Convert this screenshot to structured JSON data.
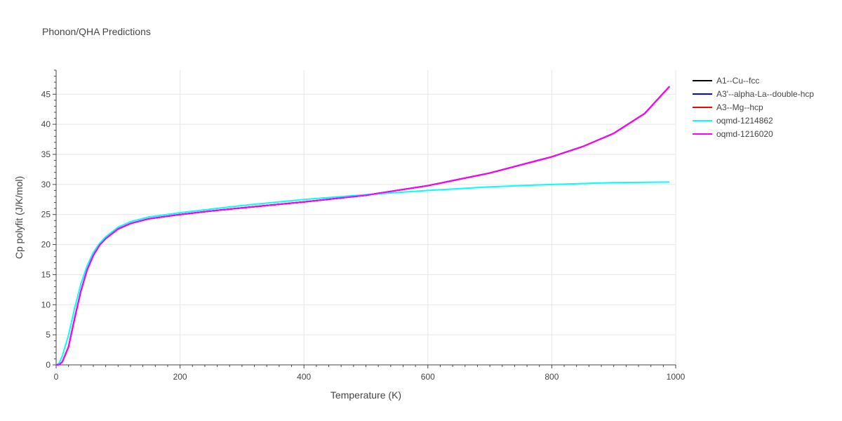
{
  "chart_data": {
    "type": "line",
    "title": "Phonon/QHA Predictions",
    "xlabel": "Temperature (K)",
    "ylabel": "Cp polyfit (J/K/mol)",
    "xlim": [
      0,
      1000
    ],
    "ylim": [
      0,
      49
    ],
    "xticks": [
      0,
      200,
      400,
      600,
      800,
      1000
    ],
    "yticks": [
      0,
      5,
      10,
      15,
      20,
      25,
      30,
      35,
      40,
      45
    ],
    "grid": true,
    "legend_position": "top-right",
    "series": [
      {
        "name": "A1--Cu--fcc",
        "color": "#000000",
        "x": [
          0,
          5,
          10,
          20,
          30,
          40,
          50,
          60,
          70,
          80,
          100,
          120,
          150,
          200,
          250,
          300,
          400,
          500,
          600,
          700,
          800,
          850,
          900,
          950,
          990
        ],
        "y": [
          0,
          0.05,
          0.5,
          3.0,
          7.8,
          12.3,
          15.8,
          18.2,
          19.9,
          21.0,
          22.6,
          23.5,
          24.3,
          25.0,
          25.6,
          26.1,
          27.1,
          28.2,
          29.8,
          31.9,
          34.6,
          36.3,
          38.5,
          41.8,
          46.3
        ]
      },
      {
        "name": "A3'--alpha-La--double-hcp",
        "color": "#0000ff",
        "x": [
          0,
          5,
          10,
          20,
          30,
          40,
          50,
          60,
          70,
          80,
          100,
          120,
          150,
          200,
          250,
          300,
          400,
          500,
          600,
          700,
          800,
          850,
          900,
          950,
          990
        ],
        "y": [
          0,
          0.05,
          0.5,
          3.0,
          7.8,
          12.3,
          15.8,
          18.2,
          19.9,
          21.0,
          22.6,
          23.5,
          24.3,
          25.0,
          25.6,
          26.1,
          27.1,
          28.2,
          29.8,
          31.9,
          34.6,
          36.3,
          38.5,
          41.8,
          46.3
        ]
      },
      {
        "name": "A3--Mg--hcp",
        "color": "#ff0000",
        "x": [
          0,
          5,
          10,
          20,
          30,
          40,
          50,
          60,
          70,
          80,
          100,
          120,
          150,
          200,
          250,
          300,
          400,
          500,
          600,
          700,
          800,
          850,
          900,
          950,
          990
        ],
        "y": [
          0,
          0.05,
          0.5,
          3.0,
          7.8,
          12.3,
          15.8,
          18.2,
          19.9,
          21.0,
          22.6,
          23.5,
          24.3,
          25.0,
          25.6,
          26.1,
          27.1,
          28.2,
          29.8,
          31.9,
          34.6,
          36.3,
          38.5,
          41.8,
          46.3
        ]
      },
      {
        "name": "oqmd-1214862",
        "color": "#00ffff",
        "x": [
          0,
          5,
          10,
          20,
          30,
          40,
          50,
          60,
          70,
          80,
          100,
          120,
          150,
          200,
          250,
          300,
          400,
          500,
          600,
          700,
          800,
          900,
          990
        ],
        "y": [
          0,
          0.3,
          1.5,
          5.0,
          9.5,
          13.5,
          16.5,
          18.7,
          20.2,
          21.3,
          22.9,
          23.8,
          24.6,
          25.3,
          25.9,
          26.5,
          27.5,
          28.3,
          29.0,
          29.6,
          30.0,
          30.3,
          30.4
        ]
      },
      {
        "name": "oqmd-1216020",
        "color": "#ff00ff",
        "x": [
          0,
          5,
          10,
          20,
          30,
          40,
          50,
          60,
          70,
          80,
          100,
          120,
          150,
          200,
          250,
          300,
          400,
          500,
          600,
          700,
          800,
          850,
          900,
          950,
          990
        ],
        "y": [
          0,
          0.05,
          0.5,
          3.0,
          7.8,
          12.3,
          15.8,
          18.2,
          19.9,
          21.0,
          22.6,
          23.5,
          24.3,
          25.0,
          25.6,
          26.1,
          27.1,
          28.2,
          29.8,
          31.9,
          34.6,
          36.3,
          38.5,
          41.8,
          46.3
        ]
      }
    ]
  }
}
